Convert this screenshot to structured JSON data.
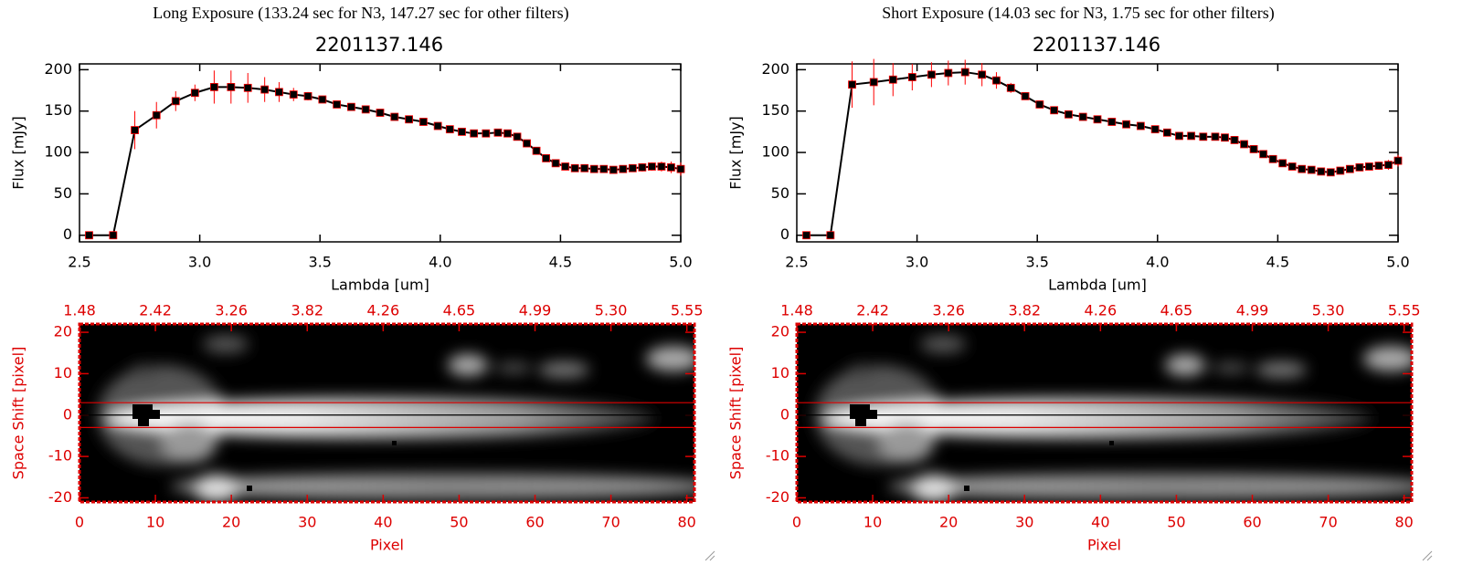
{
  "chart_data": [
    {
      "type": "line",
      "title": "Long Exposure (133.24 sec for N3, 147.27 sec for other filters)",
      "subtitle": "2201137.146",
      "xlabel": "Lambda [um]",
      "ylabel": "Flux [mJy]",
      "x": [
        2.54,
        2.64,
        2.73,
        2.82,
        2.9,
        2.98,
        3.06,
        3.13,
        3.2,
        3.27,
        3.33,
        3.39,
        3.45,
        3.51,
        3.57,
        3.63,
        3.69,
        3.75,
        3.81,
        3.87,
        3.93,
        3.99,
        4.04,
        4.09,
        4.14,
        4.19,
        4.24,
        4.28,
        4.32,
        4.36,
        4.4,
        4.44,
        4.48,
        4.52,
        4.56,
        4.6,
        4.64,
        4.68,
        4.72,
        4.76,
        4.8,
        4.84,
        4.88,
        4.92,
        4.96,
        5.0
      ],
      "values": [
        0,
        0,
        127,
        145,
        162,
        172,
        179,
        179,
        178,
        176,
        173,
        170,
        168,
        164,
        158,
        155,
        152,
        148,
        143,
        140,
        137,
        132,
        128,
        125,
        123,
        123,
        124,
        123,
        119,
        111,
        102,
        93,
        87,
        83,
        81,
        81,
        80,
        80,
        79,
        80,
        81,
        82,
        83,
        83,
        82,
        80
      ],
      "errors": [
        3,
        3,
        23,
        16,
        12,
        10,
        20,
        20,
        18,
        15,
        12,
        8,
        5,
        4,
        4,
        4,
        4,
        4,
        4,
        4,
        4,
        4,
        4,
        4,
        4,
        4,
        4,
        4,
        4,
        4,
        4,
        4,
        4,
        4,
        4,
        4,
        4,
        4,
        4,
        4,
        4,
        5,
        5,
        6,
        7,
        8
      ],
      "color": "#000000",
      "error_color": "#ff0000",
      "xlim": [
        2.5,
        5.0
      ],
      "ylim": [
        -8,
        207
      ],
      "xticks": [
        2.5,
        {
          "value": 3,
          "label": "3.0"
        },
        3.5,
        {
          "value": 4,
          "label": "4.0"
        },
        4.5,
        {
          "value": 5,
          "label": "5.0"
        }
      ],
      "yticks": [
        0,
        50,
        100,
        150,
        200
      ]
    },
    {
      "type": "line",
      "title": "Short Exposure (14.03 sec for N3, 1.75 sec for other filters)",
      "subtitle": "2201137.146",
      "xlabel": "Lambda [um]",
      "ylabel": "Flux [mJy]",
      "x": [
        2.54,
        2.64,
        2.73,
        2.82,
        2.9,
        2.98,
        3.06,
        3.13,
        3.2,
        3.27,
        3.33,
        3.39,
        3.45,
        3.51,
        3.57,
        3.63,
        3.69,
        3.75,
        3.81,
        3.87,
        3.93,
        3.99,
        4.04,
        4.09,
        4.14,
        4.19,
        4.24,
        4.28,
        4.32,
        4.36,
        4.4,
        4.44,
        4.48,
        4.52,
        4.56,
        4.6,
        4.64,
        4.68,
        4.72,
        4.76,
        4.8,
        4.84,
        4.88,
        4.92,
        4.96,
        5.0
      ],
      "values": [
        0,
        0,
        182,
        185,
        188,
        191,
        194,
        196,
        197,
        194,
        187,
        178,
        168,
        158,
        151,
        146,
        143,
        140,
        137,
        134,
        132,
        128,
        124,
        120,
        120,
        119,
        119,
        118,
        115,
        110,
        104,
        98,
        92,
        87,
        83,
        80,
        79,
        77,
        76,
        78,
        80,
        82,
        83,
        84,
        85,
        90
      ],
      "errors": [
        3,
        3,
        28,
        28,
        20,
        16,
        15,
        15,
        15,
        14,
        10,
        6,
        4,
        4,
        4,
        3,
        3,
        3,
        3,
        3,
        3,
        3,
        3,
        3,
        3,
        3,
        3,
        3,
        3,
        3,
        3,
        3,
        3,
        3,
        3,
        3,
        3,
        3,
        3,
        3,
        3,
        4,
        4,
        5,
        6,
        7
      ],
      "color": "#000000",
      "error_color": "#ff0000",
      "xlim": [
        2.5,
        5.0
      ],
      "ylim": [
        -8,
        207
      ],
      "xticks": [
        2.5,
        {
          "value": 3,
          "label": "3.0"
        },
        3.5,
        {
          "value": 4,
          "label": "4.0"
        },
        4.5,
        {
          "value": 5,
          "label": "5.0"
        }
      ],
      "yticks": [
        0,
        50,
        100,
        150,
        200
      ]
    },
    {
      "type": "image",
      "xlabel": "Pixel",
      "ylabel": "Space Shift [pixel]",
      "axis_color": "#dd0000",
      "xlim": [
        0,
        81
      ],
      "ylim": [
        -21,
        22
      ],
      "xticks": [
        0,
        10,
        20,
        30,
        40,
        50,
        60,
        70,
        80
      ],
      "x2ticks": [
        {
          "value": 0,
          "label": "1.48"
        },
        {
          "value": 10,
          "label": "2.42"
        },
        {
          "value": 20,
          "label": "3.26"
        },
        {
          "value": 30,
          "label": "3.82"
        },
        {
          "value": 40,
          "label": "4.26"
        },
        {
          "value": 50,
          "label": "4.65"
        },
        {
          "value": 60,
          "label": "4.99"
        },
        {
          "value": 70,
          "label": "5.30"
        },
        {
          "value": 80,
          "label": "5.55"
        }
      ],
      "yticks": [
        -20,
        -10,
        0,
        10,
        20
      ],
      "aperture": [
        -3,
        3
      ],
      "trace": 0
    },
    {
      "type": "image",
      "xlabel": "Pixel",
      "ylabel": "Space Shift [pixel]",
      "axis_color": "#dd0000",
      "xlim": [
        0,
        81
      ],
      "ylim": [
        -21,
        22
      ],
      "xticks": [
        0,
        10,
        20,
        30,
        40,
        50,
        60,
        70,
        80
      ],
      "x2ticks": [
        {
          "value": 0,
          "label": "1.48"
        },
        {
          "value": 10,
          "label": "2.42"
        },
        {
          "value": 20,
          "label": "3.26"
        },
        {
          "value": 30,
          "label": "3.82"
        },
        {
          "value": 40,
          "label": "4.26"
        },
        {
          "value": 50,
          "label": "4.65"
        },
        {
          "value": 60,
          "label": "4.99"
        },
        {
          "value": 70,
          "label": "5.30"
        },
        {
          "value": 80,
          "label": "5.55"
        }
      ],
      "yticks": [
        -20,
        -10,
        0,
        10,
        20
      ],
      "aperture": [
        -3,
        3
      ],
      "trace": 0
    }
  ]
}
